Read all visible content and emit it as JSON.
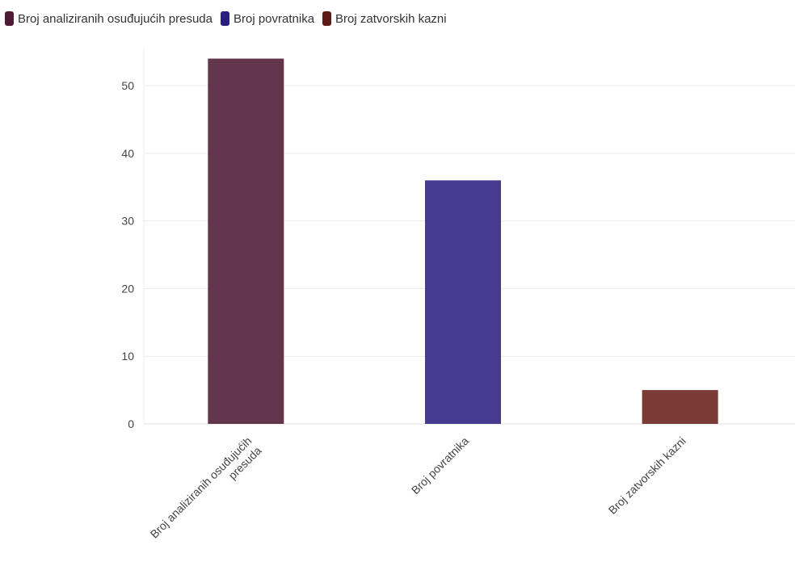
{
  "chart_data": {
    "type": "bar",
    "categories": [
      [
        "Broj analiziranih osuđujućih",
        "presuda"
      ],
      [
        "Broj povratnika"
      ],
      [
        "Broj zatvorskih kazni"
      ]
    ],
    "series": [
      {
        "name": "Broj analiziranih osuđujućih presuda",
        "values": [
          54,
          0,
          0
        ],
        "color": "#4f1a33"
      },
      {
        "name": "Broj povratnika",
        "values": [
          0,
          36,
          0
        ],
        "color": "#2a1f80"
      },
      {
        "name": "Broj zatvorskih kazni",
        "values": [
          0,
          0,
          5
        ],
        "color": "#5c1b15"
      }
    ],
    "bar_colors": [
      "#63364e",
      "#463b8f",
      "#7a3a35"
    ],
    "values": [
      54,
      36,
      5
    ],
    "yticks": [
      0,
      10,
      20,
      30,
      40,
      50
    ],
    "ylim": [
      0,
      55.5
    ],
    "grid": true,
    "legend_position": "top-left"
  }
}
